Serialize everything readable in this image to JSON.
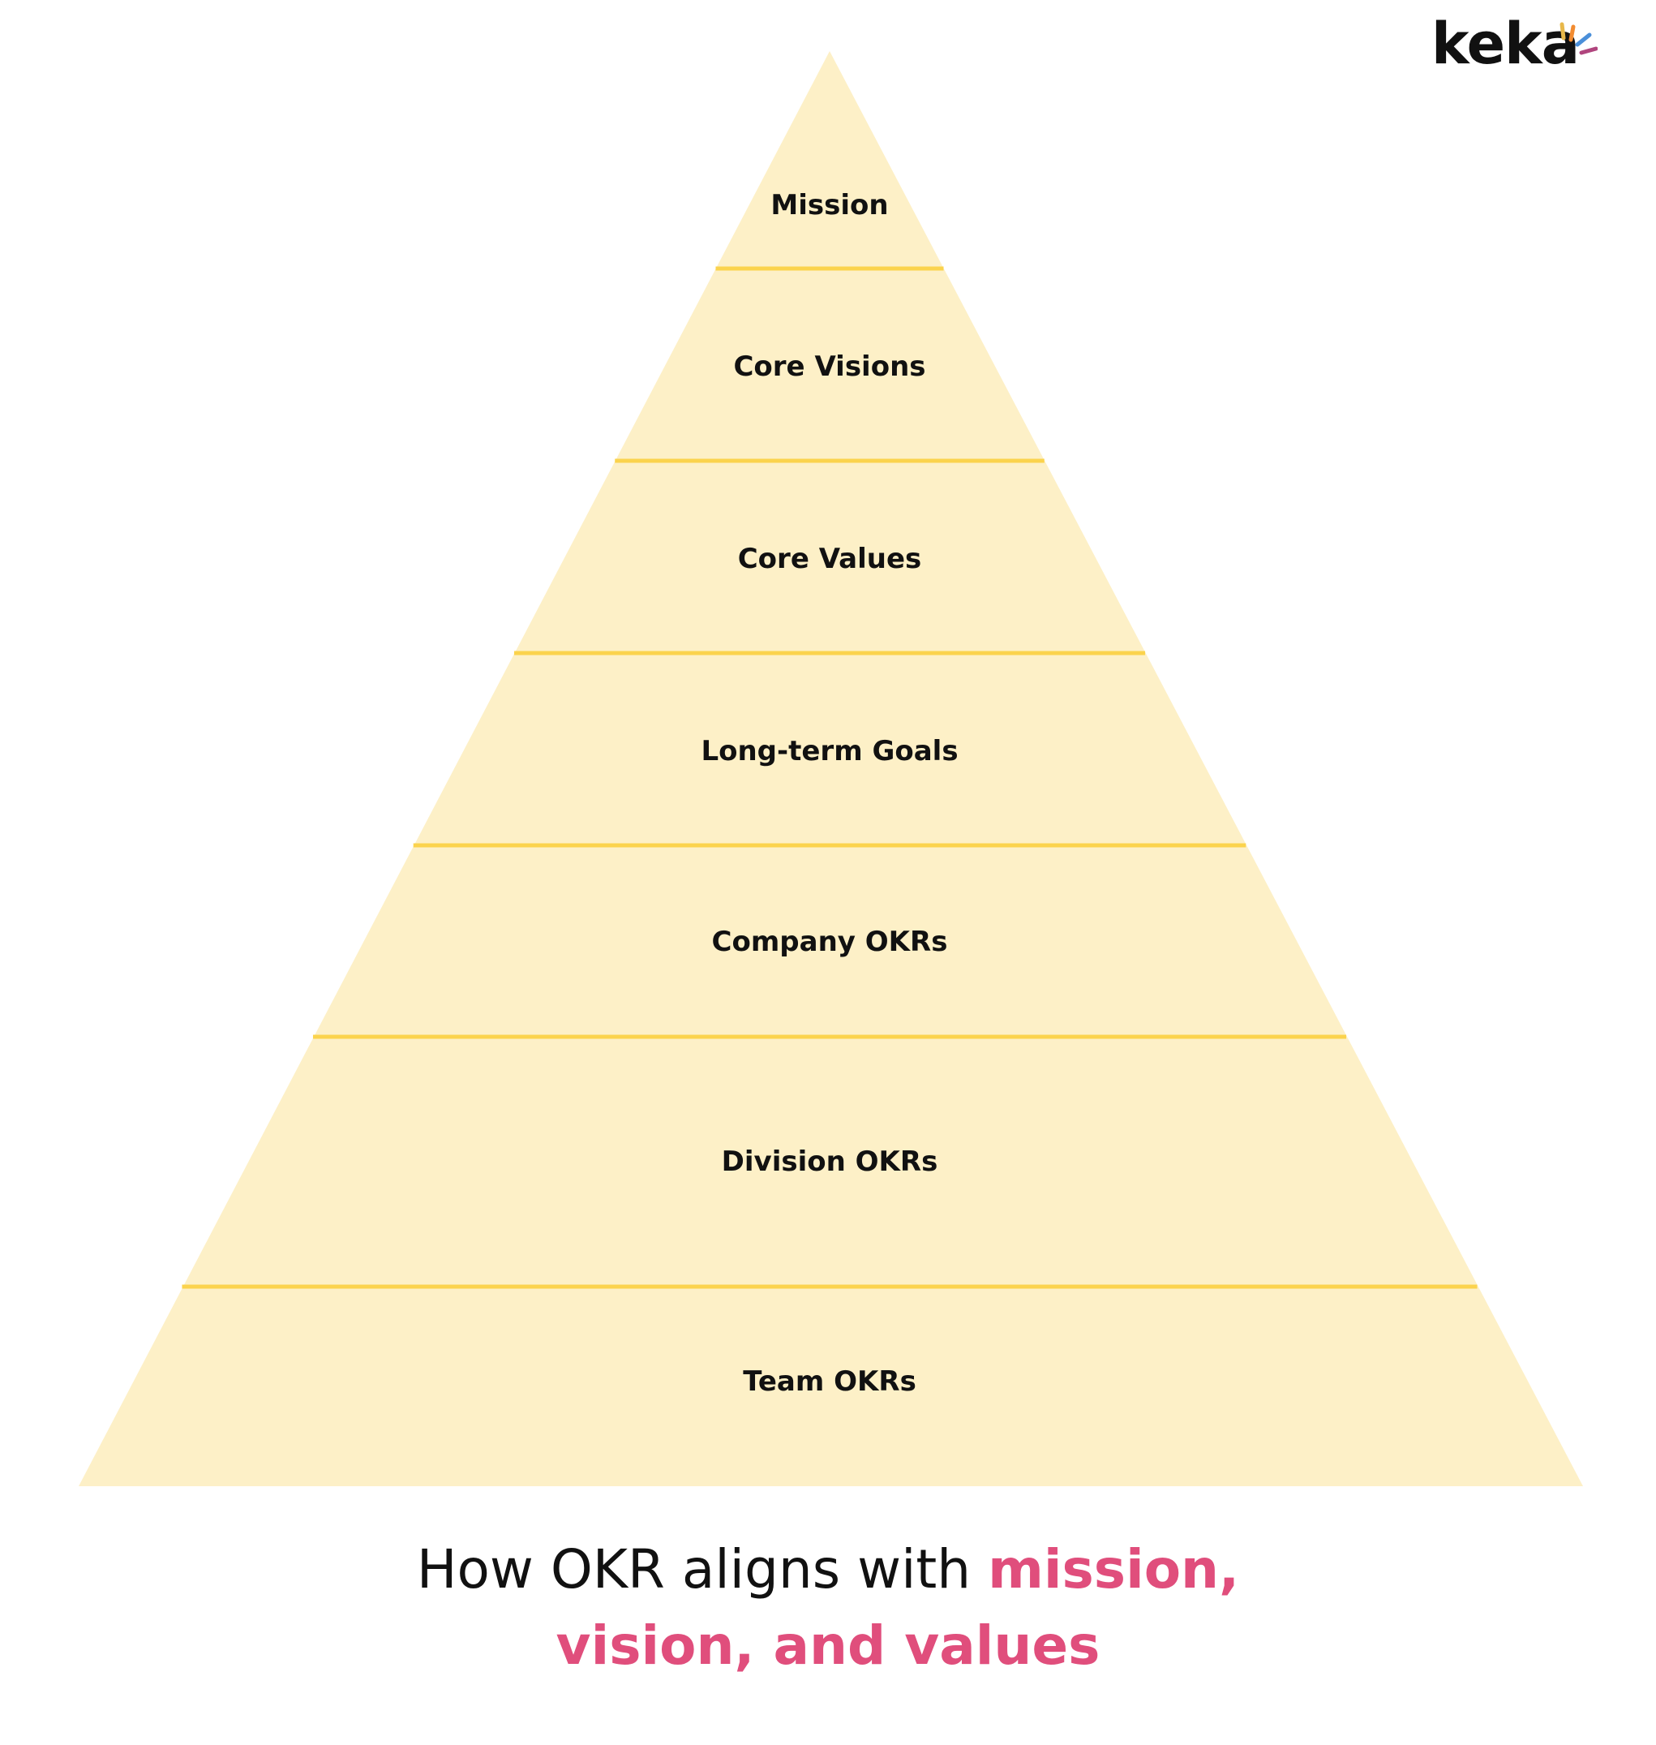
{
  "logo": {
    "text": "keka",
    "text_color": "#111111",
    "spark_colors": [
      "#E8B84A",
      "#F28B30",
      "#4A8FD9",
      "#B0457E"
    ]
  },
  "diagram": {
    "fill_color": "#FDF0C7",
    "divider_color": "#FBD34D",
    "label_color": "#111111",
    "tiers": [
      {
        "label": "Mission"
      },
      {
        "label": "Core Visions"
      },
      {
        "label": "Core Values"
      },
      {
        "label": "Long-term Goals"
      },
      {
        "label": "Company OKRs"
      },
      {
        "label": "Division OKRs"
      },
      {
        "label": "Team OKRs"
      }
    ]
  },
  "caption": {
    "text_color": "#111111",
    "highlight_color": "#E04E7C",
    "plain": "How OKR aligns with",
    "highlight_line1": "mission,",
    "highlight_line2": "vision, and values"
  }
}
